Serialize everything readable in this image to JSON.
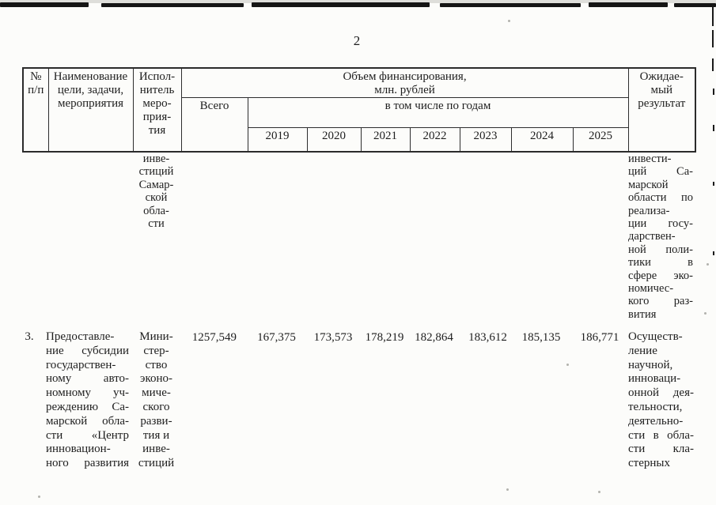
{
  "page": {
    "number": "2"
  },
  "colors": {
    "paper": "#fcfcfa",
    "ink": "#1e1e1e",
    "border": "#2d2d2d"
  },
  "table": {
    "header": {
      "num_lines": [
        "№",
        "п/п"
      ],
      "name_lines": [
        "Наименование",
        "цели, задачи,",
        "мероприятия"
      ],
      "executor_lines": [
        "Испол-",
        "нитель",
        "меро-",
        "прия-",
        "тия"
      ],
      "financing_lines": [
        "Объем финансирования,",
        "млн. рублей"
      ],
      "total": "Всего",
      "by_years": "в том числе по годам",
      "years": [
        "2019",
        "2020",
        "2021",
        "2022",
        "2023",
        "2024",
        "2025"
      ],
      "expected_lines": [
        "Ожидае-",
        "мый",
        "результат"
      ]
    },
    "carryover_row": {
      "executor_lines": [
        "инве-",
        "стиций",
        "Самар-",
        "ской",
        "обла-",
        "сти"
      ],
      "expected_result_lines": [
        "инвести-",
        "ций Са-",
        "марской",
        "области по",
        "реализа-",
        "ции госу-",
        "дарствен-",
        "ной поли-",
        "тики в",
        "сфере эко-",
        "номичес-",
        "кого раз-",
        "вития"
      ]
    },
    "row_3": {
      "num": "3.",
      "name_lines": [
        "Предоставле-",
        "ние субсидии",
        "государствен-",
        "ному авто-",
        "номному уч-",
        "реждению Са-",
        "марской обла-",
        "сти «Центр",
        "инновацион-",
        "ного развития"
      ],
      "executor_lines": [
        "Мини-",
        "стер-",
        "ство",
        "эконо-",
        "миче-",
        "ского",
        "разви-",
        "тия и",
        "инве-",
        "стиций"
      ],
      "total": "1257,549",
      "year_values": [
        "167,375",
        "173,573",
        "178,219",
        "182,864",
        "183,612",
        "185,135",
        "186,771"
      ],
      "expected_result_lines": [
        "Осуществ-",
        "ление",
        "научной,",
        "инноваци-",
        "онной дея-",
        "тельности,",
        "деятельно-",
        "сти в обла-",
        "сти кла-",
        "стерных"
      ]
    }
  }
}
